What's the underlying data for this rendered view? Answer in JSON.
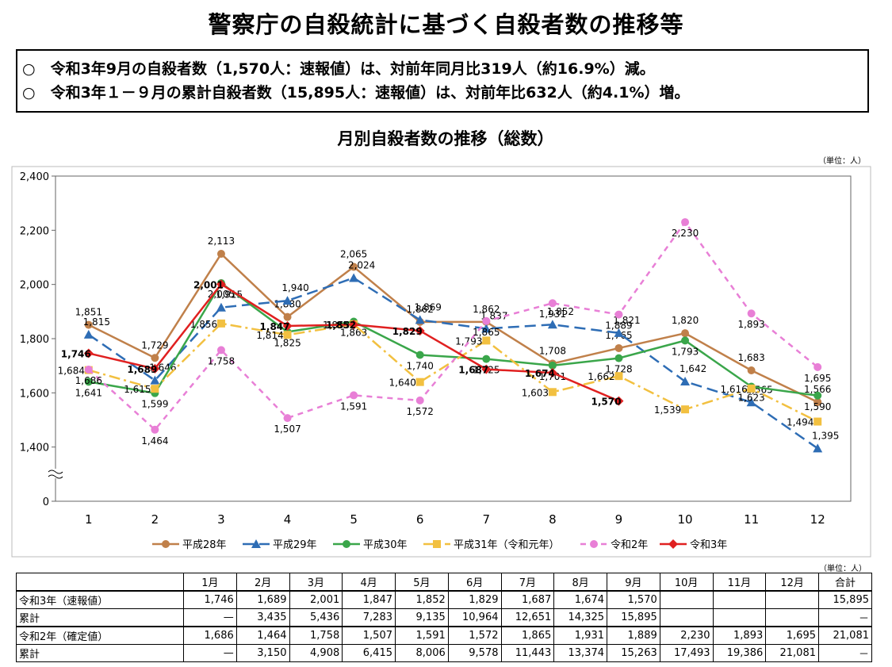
{
  "header": {
    "title": "警察庁の自殺統計に基づく自殺者数の推移等",
    "notes": [
      "○　令和3年9月の自殺者数（1,570人：速報値）は、対前年同月比319人（約16.9%）減。",
      "○　令和3年１－９月の累計自殺者数（15,895人：速報値）は、対前年比632人（約4.1%）増。"
    ]
  },
  "chart_data": {
    "type": "line",
    "title": "月別自殺者数の推移（総数）",
    "unit": "（単位：人）",
    "categories": [
      "1",
      "2",
      "3",
      "4",
      "5",
      "6",
      "7",
      "8",
      "9",
      "10",
      "11",
      "12"
    ],
    "ylim": [
      1200,
      2400
    ],
    "yticks": [
      {
        "value": 0,
        "label": "0"
      },
      {
        "value": 1400,
        "label": "1,400"
      },
      {
        "value": 1600,
        "label": "1,600"
      },
      {
        "value": 1800,
        "label": "1,800"
      },
      {
        "value": 2000,
        "label": "2,000"
      },
      {
        "value": 2200,
        "label": "2,200"
      },
      {
        "value": 2400,
        "label": "2,400"
      }
    ],
    "axis_break": true,
    "grid": false,
    "series": [
      {
        "name": "平成28年",
        "color": "#c0804a",
        "marker": "circle",
        "dash": "solid",
        "values": [
          1851,
          1729,
          2113,
          1880,
          2065,
          1862,
          1862,
          1708,
          1765,
          1820,
          1683,
          1566
        ],
        "value_labels": [
          "1,851",
          "1,729",
          "2,113",
          "1,880",
          "2,065",
          "1,862",
          "1,862",
          "1,708",
          "1,765",
          "1,820",
          "1,683",
          "1,566"
        ]
      },
      {
        "name": "平成29年",
        "color": "#2e6db5",
        "marker": "triangle",
        "dash": "long-dash",
        "values": [
          1815,
          1646,
          1915,
          1940,
          2024,
          1869,
          1837,
          1852,
          1821,
          1642,
          1565,
          1395
        ],
        "value_labels": [
          "1,815",
          "1,646",
          "1,915",
          "1,940",
          "2,024",
          "1,869",
          "1,837",
          "1,852",
          "1,821",
          "1,642",
          "1,565",
          "1,395"
        ]
      },
      {
        "name": "平成30年",
        "color": "#3aa64a",
        "marker": "circle",
        "dash": "solid",
        "values": [
          1641,
          1599,
          2005,
          1825,
          1863,
          1740,
          1725,
          1701,
          1728,
          1793,
          1623,
          1590
        ],
        "value_labels": [
          "1,641",
          "1,599",
          "2,005",
          "1,825",
          "1,863",
          "1,740",
          "1,725",
          "1,701",
          "1,728",
          "1,793",
          "1,623",
          "1,590"
        ]
      },
      {
        "name": "平成31年（令和元年）",
        "color": "#f2c040",
        "marker": "square",
        "dash": "dash-dot",
        "values": [
          1684,
          1615,
          1856,
          1814,
          1853,
          1640,
          1793,
          1603,
          1662,
          1539,
          1616,
          1494
        ],
        "value_labels": [
          "1,684",
          "1,615",
          "1,856",
          "1,814",
          "1,853",
          "1,640",
          "1,793",
          "1,603",
          "1,662",
          "1,539",
          "1,616",
          "1,494"
        ]
      },
      {
        "name": "令和2年",
        "color": "#e87fd6",
        "marker": "circle",
        "dash": "dash",
        "values": [
          1686,
          1464,
          1758,
          1507,
          1591,
          1572,
          1865,
          1931,
          1889,
          2230,
          1893,
          1695
        ],
        "value_labels": [
          "1,686",
          "1,464",
          "1,758",
          "1,507",
          "1,591",
          "1,572",
          "1,865",
          "1,931",
          "1,889",
          "2,230",
          "1,893",
          "1,695"
        ]
      },
      {
        "name": "令和3年",
        "color": "#e02020",
        "marker": "diamond",
        "dash": "solid",
        "bold_labels": true,
        "values": [
          1746,
          1689,
          2001,
          1847,
          1852,
          1829,
          1687,
          1674,
          1570,
          null,
          null,
          null
        ],
        "value_labels": [
          "1,746",
          "1,689",
          "2,001",
          "1,847",
          "1,852",
          "1,829",
          "1,687",
          "1,674",
          "1,570",
          null,
          null,
          null
        ]
      }
    ],
    "legend": "bottom"
  },
  "table": {
    "unit": "（単位：人）",
    "header": [
      null,
      "1月",
      "2月",
      "3月",
      "4月",
      "5月",
      "6月",
      "7月",
      "8月",
      "9月",
      "10月",
      "11月",
      "12月",
      "合計"
    ],
    "rows": [
      [
        "令和3年（速報値）",
        "1,746",
        "1,689",
        "2,001",
        "1,847",
        "1,852",
        "1,829",
        "1,687",
        "1,674",
        "1,570",
        null,
        null,
        null,
        "15,895"
      ],
      [
        "累計",
        "—",
        "3,435",
        "5,436",
        "7,283",
        "9,135",
        "10,964",
        "12,651",
        "14,325",
        "15,895",
        null,
        null,
        null,
        "－"
      ],
      [
        "令和2年（確定値）",
        "1,686",
        "1,464",
        "1,758",
        "1,507",
        "1,591",
        "1,572",
        "1,865",
        "1,931",
        "1,889",
        "2,230",
        "1,893",
        "1,695",
        "21,081"
      ],
      [
        "累計",
        "—",
        "3,150",
        "4,908",
        "6,415",
        "8,006",
        "9,578",
        "11,443",
        "13,374",
        "15,263",
        "17,493",
        "19,386",
        "21,081",
        "－"
      ]
    ]
  }
}
